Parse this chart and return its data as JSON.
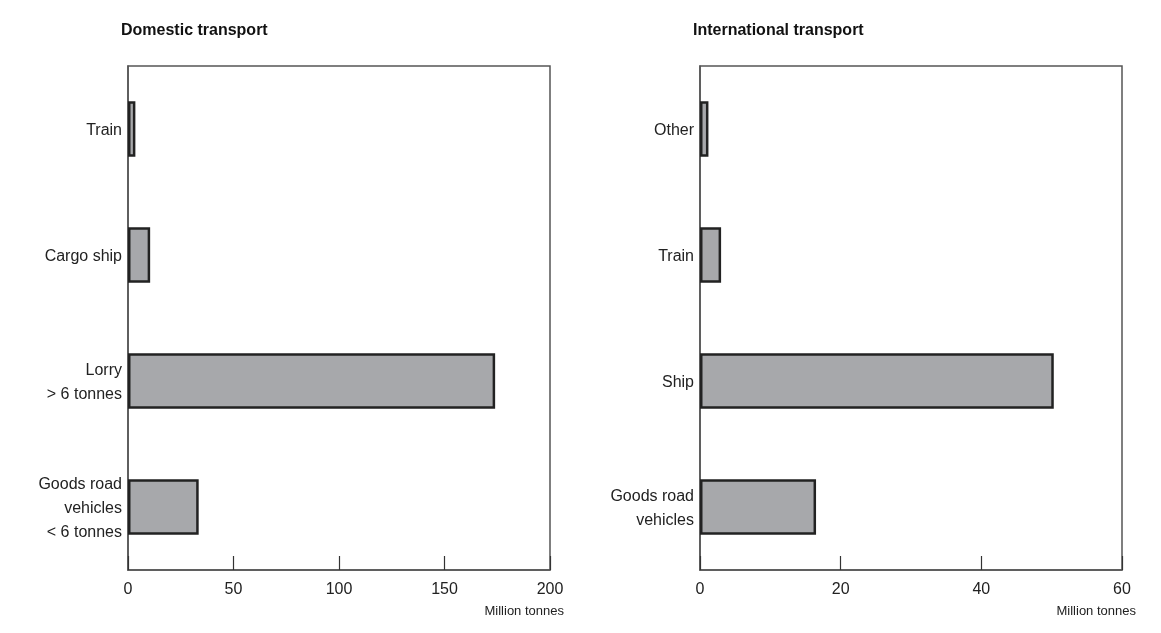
{
  "chart_data": [
    {
      "type": "bar",
      "orientation": "horizontal",
      "title": "Domestic transport",
      "xlabel": "Million tonnes",
      "categories": [
        "Train",
        "Cargo ship",
        "Lorry\n> 6 tonnes",
        "Goods road\nvehicles\n< 6 tonnes"
      ],
      "values": [
        3.5,
        10.5,
        174,
        33.5
      ],
      "color": "#a7a8ab",
      "xlim": [
        0,
        200
      ],
      "xticks": [
        0,
        50,
        100,
        150,
        200
      ],
      "grid": false
    },
    {
      "type": "bar",
      "orientation": "horizontal",
      "title": "International transport",
      "xlabel": "Million tonnes",
      "categories": [
        "Other",
        "Train",
        "Ship",
        "Goods road\nvehicles"
      ],
      "values": [
        1.2,
        3,
        50.3,
        16.5
      ],
      "color": "#a7a8ab",
      "xlim": [
        0,
        60
      ],
      "xticks": [
        0,
        20,
        40,
        60
      ],
      "grid": false
    }
  ]
}
